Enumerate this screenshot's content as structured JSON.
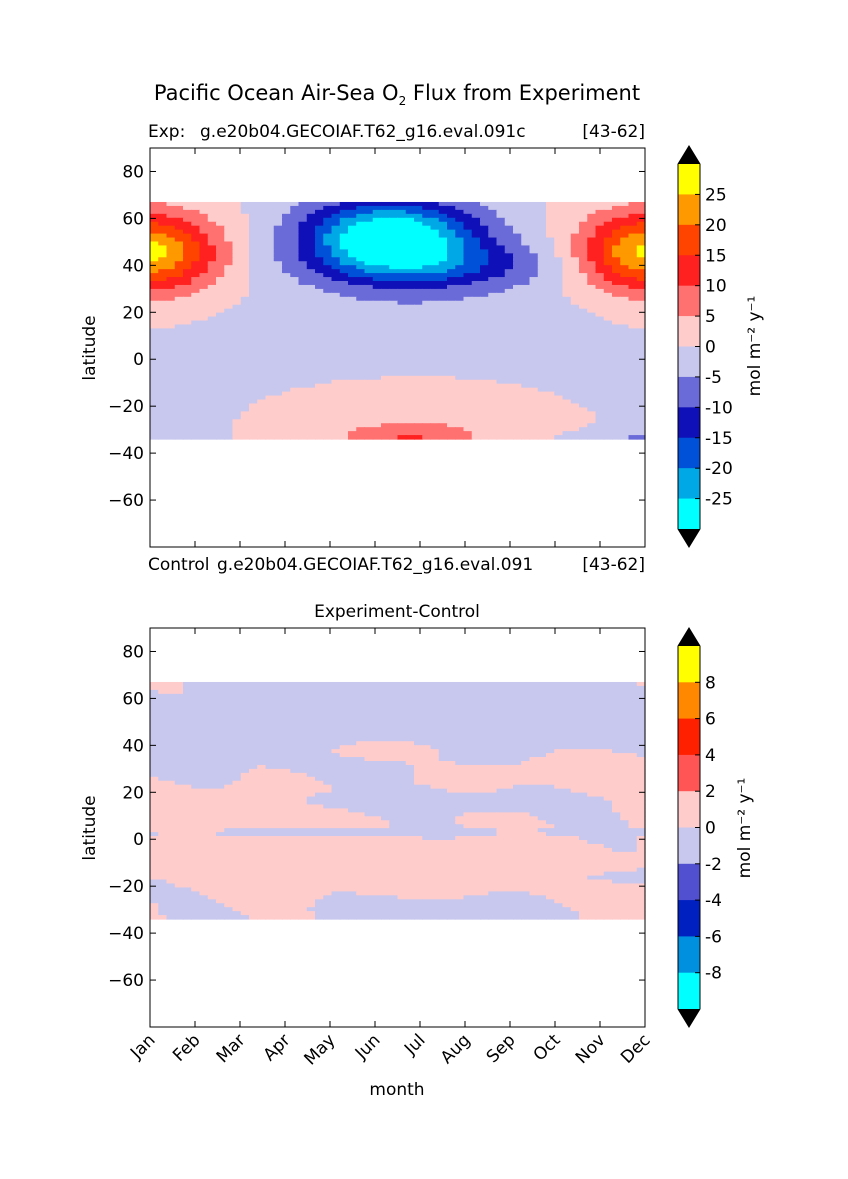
{
  "figure": {
    "title_main": "Pacific Ocean Air-Sea O",
    "title_sub": "2",
    "title_rest": " Flux from Experiment"
  },
  "colors": {
    "level_colors_top": [
      "#00ffff",
      "#00a8e6",
      "#0050d8",
      "#1010b8",
      "#6a6ad8",
      "#c8c8ee",
      "#ffcccc",
      "#ff7070",
      "#ff2020",
      "#ff4400",
      "#ff9900",
      "#ffff00"
    ],
    "level_colors_diff": [
      "#00ffff",
      "#0090e0",
      "#0020c0",
      "#5050d0",
      "#c8c8ee",
      "#ffcccc",
      "#ff5555",
      "#ff2000",
      "#ff8800",
      "#ffff00"
    ],
    "extend_color": "#000000"
  },
  "chart_data": [
    {
      "type": "contour",
      "title": "",
      "title_left": "Exp:",
      "title_center": "g.e20b04.GECOIAF.T62_g16.eval.091c",
      "title_right": "[43-62]",
      "bottom_left": "Control",
      "bottom_center": "g.e20b04.GECOIAF.T62_g16.eval.091",
      "bottom_right": "[43-62]",
      "xlabel": "",
      "ylabel": "latitude",
      "x_categories": [
        "Jan",
        "Feb",
        "Mar",
        "Apr",
        "May",
        "Jun",
        "Jul",
        "Aug",
        "Sep",
        "Oct",
        "Nov",
        "Dec"
      ],
      "show_x_ticklabels": false,
      "yticks": [
        80,
        60,
        40,
        20,
        0,
        -20,
        -40,
        -60
      ],
      "ytick_labels": [
        "80",
        "60",
        "40",
        "20",
        "0",
        "−20",
        "−40",
        "−60"
      ],
      "ylim": [
        -80,
        90
      ],
      "data_lat_range": [
        -34,
        67
      ],
      "colorbar": {
        "levels": [
          -30,
          -25,
          -20,
          -15,
          -10,
          -5,
          0,
          5,
          10,
          15,
          20,
          25,
          30
        ],
        "tick_values": [
          25,
          20,
          15,
          10,
          5,
          0,
          -5,
          -10,
          -15,
          -20,
          -25
        ],
        "tick_labels": [
          "25",
          "20",
          "15",
          "10",
          "5",
          "0",
          "-5",
          "-10",
          "-15",
          "-20",
          "-25"
        ],
        "extend": "both",
        "label": "mol m⁻² y⁻¹"
      }
    },
    {
      "type": "contour",
      "title": "Experiment-Control",
      "xlabel": "month",
      "ylabel": "latitude",
      "x_categories": [
        "Jan",
        "Feb",
        "Mar",
        "Apr",
        "May",
        "Jun",
        "Jul",
        "Aug",
        "Sep",
        "Oct",
        "Nov",
        "Dec"
      ],
      "show_x_ticklabels": true,
      "yticks": [
        80,
        60,
        40,
        20,
        0,
        -20,
        -40,
        -60
      ],
      "ytick_labels": [
        "80",
        "60",
        "40",
        "20",
        "0",
        "−20",
        "−40",
        "−60"
      ],
      "ylim": [
        -80,
        90
      ],
      "data_lat_range": [
        -34,
        67
      ],
      "colorbar": {
        "levels": [
          -10,
          -8,
          -6,
          -4,
          -2,
          0,
          2,
          4,
          6,
          8,
          10
        ],
        "tick_values": [
          8,
          6,
          4,
          2,
          0,
          -2,
          -4,
          -6,
          -8
        ],
        "tick_labels": [
          "8",
          "6",
          "4",
          "2",
          "0",
          "-2",
          "-4",
          "-6",
          "-8"
        ],
        "extend": "both",
        "label": "mol m⁻² y⁻¹"
      }
    }
  ]
}
